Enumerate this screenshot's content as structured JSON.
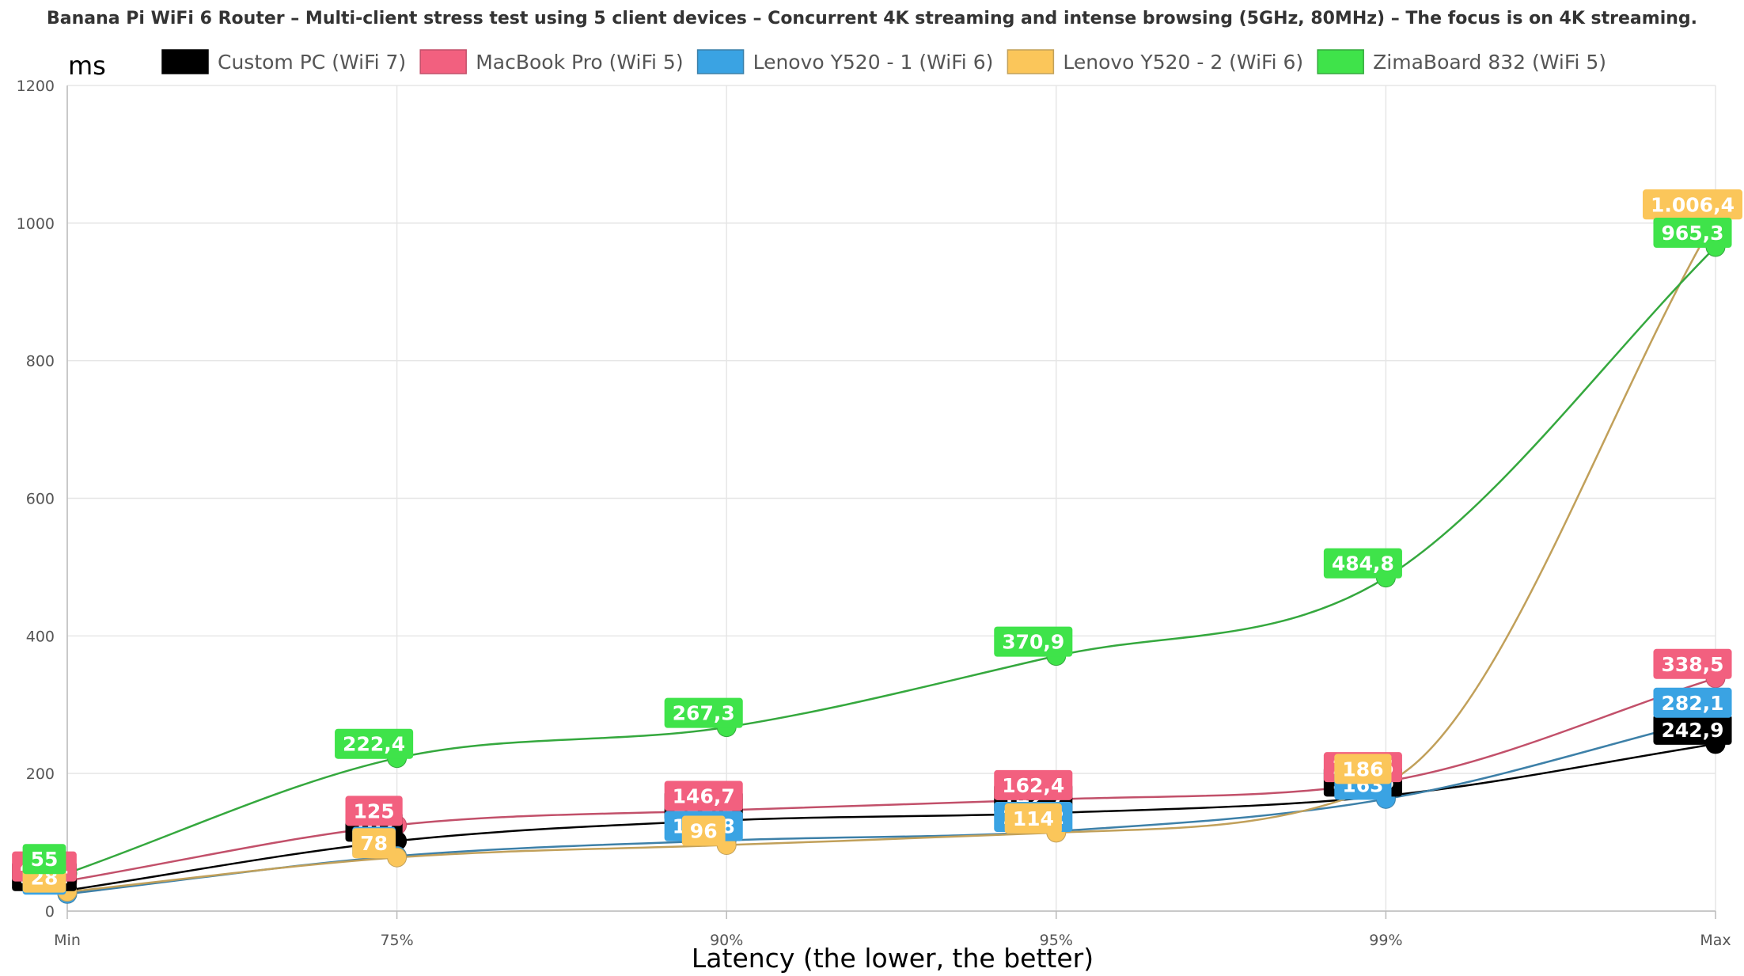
{
  "chart_data": {
    "type": "line",
    "title": "Banana Pi WiFi 6 Router – Multi-client stress test using 5 client devices – Concurrent 4K streaming and intense browsing (5GHz, 80MHz) – The focus is on 4K streaming.",
    "ylabel": "ms",
    "xlabel": "Latency (the lower, the better)",
    "categories": [
      "Min",
      "75%",
      "90%",
      "95%",
      "99%",
      "Max"
    ],
    "ylim": [
      0,
      1200
    ],
    "yticks": [
      "0",
      "200",
      "400",
      "600",
      "800",
      "1000",
      "1200"
    ],
    "grid": true,
    "legend": "top",
    "series": [
      {
        "name": "Custom PC (WiFi 7)",
        "color": "#000000",
        "line": "#000000",
        "values": [
          30.2,
          102,
          131.9,
          142.7,
          167.6,
          242.9
        ],
        "labels": [
          "30,2",
          "102",
          "131,9",
          "142,7",
          "167,6",
          "242,9"
        ]
      },
      {
        "name": "MacBook Pro (WiFi 5)",
        "color": "#f2607f",
        "line": "#c2506a",
        "values": [
          44.1,
          125,
          146.7,
          162.4,
          188.5,
          338.5
        ],
        "labels": [
          "44,1",
          "125",
          "146,7",
          "162,4",
          "188,5",
          "338,5"
        ]
      },
      {
        "name": "Lenovo Y520 - 1 (WiFi 6)",
        "color": "#3aa3e3",
        "line": "#3d80a8",
        "values": [
          25,
          80,
          102.8,
          116.2,
          163,
          282.1
        ],
        "labels": [
          "25",
          "80",
          "102,8",
          "116,2",
          "163",
          "282,1"
        ]
      },
      {
        "name": "Lenovo Y520 - 2 (WiFi 6)",
        "color": "#fbc65a",
        "line": "#c1a05a",
        "values": [
          28,
          78,
          96,
          114,
          186,
          1006.4
        ],
        "labels": [
          "28",
          "78",
          "96",
          "114",
          "186",
          "1.006,4"
        ]
      },
      {
        "name": "ZimaBoard 832 (WiFi 5)",
        "color": "#3fe34a",
        "line": "#35a83e",
        "values": [
          55,
          222.4,
          267.3,
          370.9,
          484.8,
          965.3
        ],
        "labels": [
          "55",
          "222,4",
          "267,3",
          "370,9",
          "484,8",
          "965,3"
        ]
      }
    ]
  }
}
